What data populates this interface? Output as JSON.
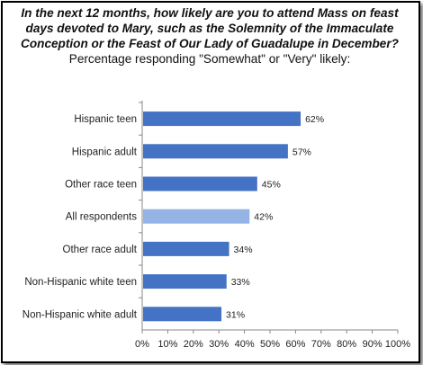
{
  "chart_data": {
    "type": "bar",
    "orientation": "horizontal",
    "title_question": "In the next 12 months, how likely are you to attend Mass on feast days devoted to Mary, such as the Solemnity of the Immaculate Conception or the Feast of Our Lady of Guadalupe in December?",
    "title_tail": "Percentage responding \"Somewhat\" or \"Very\" likely:",
    "categories": [
      "Hispanic teen",
      "Hispanic adult",
      "Other race teen",
      "All respondents",
      "Other race adult",
      "Non-Hispanic white teen",
      "Non-Hispanic white adult"
    ],
    "values": [
      62,
      57,
      45,
      42,
      34,
      33,
      31
    ],
    "value_labels": [
      "62%",
      "57%",
      "45%",
      "42%",
      "34%",
      "33%",
      "31%"
    ],
    "highlight_index": 3,
    "xlim": [
      0,
      100
    ],
    "xticks": [
      "0%",
      "10%",
      "20%",
      "30%",
      "40%",
      "50%",
      "60%",
      "70%",
      "80%",
      "90%",
      "100%"
    ],
    "grid": false,
    "colors": {
      "bar": "#4472C4",
      "highlight": "#93B4E4",
      "axis": "#888888"
    }
  }
}
